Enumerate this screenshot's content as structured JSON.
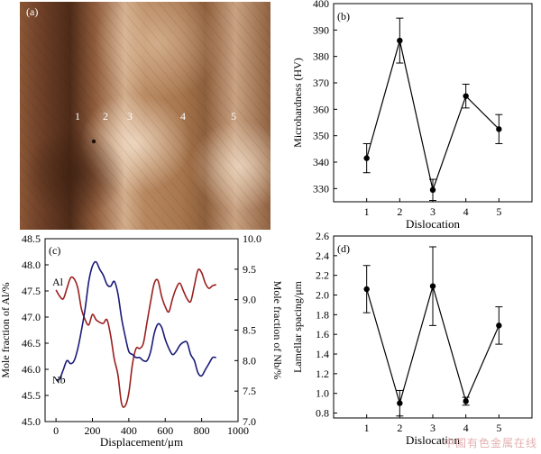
{
  "micrograph": {
    "panel_label": "(a)",
    "position_labels": [
      "1",
      "2",
      "3",
      "4",
      "5"
    ]
  },
  "watermark": "中国有色金属在线",
  "chart_data": [
    {
      "panel_label": "(b)",
      "type": "line",
      "error_bars": true,
      "categories": [
        "1",
        "2",
        "3",
        "4",
        "5"
      ],
      "series": [
        {
          "values": [
            341.5,
            386.0,
            329.5,
            365.0,
            352.5
          ],
          "errors": [
            5.5,
            8.5,
            4.0,
            4.5,
            5.5
          ]
        }
      ],
      "xlabel": "Dislocation",
      "ylabel": "Microhardness (HV)",
      "ylim": [
        325,
        400
      ],
      "yticks": [
        330,
        340,
        350,
        360,
        370,
        380,
        390,
        400
      ],
      "grid": false,
      "line_color": "#000000"
    },
    {
      "panel_label": "(c)",
      "type": "line",
      "x": [
        0,
        20,
        40,
        60,
        80,
        100,
        120,
        140,
        160,
        180,
        200,
        220,
        240,
        260,
        280,
        300,
        320,
        340,
        360,
        380,
        400,
        420,
        440,
        460,
        480,
        500,
        520,
        540,
        560,
        580,
        600,
        620,
        640,
        660,
        680,
        700,
        720,
        740,
        760,
        780,
        800,
        820,
        840,
        860,
        880
      ],
      "series": [
        {
          "name": "Al",
          "axis": "left",
          "color": "#9b1f1f",
          "values": [
            47.52,
            47.4,
            47.35,
            47.55,
            47.75,
            47.73,
            47.55,
            47.15,
            46.95,
            46.85,
            47.05,
            46.95,
            46.9,
            46.88,
            46.95,
            46.65,
            46.2,
            45.9,
            45.35,
            45.3,
            45.55,
            46.1,
            46.4,
            46.4,
            46.5,
            46.9,
            47.3,
            47.65,
            47.7,
            47.4,
            47.2,
            47.1,
            47.35,
            47.55,
            47.65,
            47.5,
            47.35,
            47.3,
            47.6,
            47.9,
            47.85,
            47.65,
            47.55,
            47.6,
            47.62
          ]
        },
        {
          "name": "Nb",
          "axis": "right",
          "color": "#1a1a7a",
          "values": [
            7.68,
            7.7,
            7.85,
            8.0,
            7.95,
            8.0,
            8.2,
            8.5,
            8.85,
            9.3,
            9.55,
            9.62,
            9.5,
            9.4,
            9.25,
            9.22,
            9.3,
            9.1,
            8.7,
            8.4,
            8.15,
            8.1,
            8.05,
            8.05,
            8.0,
            8.0,
            8.15,
            8.45,
            8.6,
            8.55,
            8.35,
            8.2,
            8.1,
            8.15,
            8.25,
            8.3,
            8.3,
            8.1,
            8.0,
            7.8,
            7.75,
            7.85,
            7.95,
            8.05,
            8.05
          ]
        }
      ],
      "series_labels": [
        "Al",
        "Nb"
      ],
      "xlabel": "Displacement/μm",
      "ylabel_left": "Mole fraction of Al/%",
      "ylabel_right": "Mole fraction of Nb/%",
      "xlim": [
        -60,
        1000
      ],
      "xticks": [
        0,
        200,
        400,
        600,
        800,
        1000
      ],
      "ylim_left": [
        45.0,
        48.5
      ],
      "yticks_left": [
        "45.0",
        "45.5",
        "46.0",
        "46.5",
        "47.0",
        "47.5",
        "48.0",
        "48.5"
      ],
      "ylim_right": [
        7.0,
        10.0
      ],
      "yticks_right": [
        "7.0",
        "7.5",
        "8.0",
        "8.5",
        "9.0",
        "9.5",
        "10.0"
      ],
      "grid": false
    },
    {
      "panel_label": "(d)",
      "type": "line",
      "error_bars": true,
      "categories": [
        "1",
        "2",
        "3",
        "4",
        "5"
      ],
      "series": [
        {
          "values": [
            2.06,
            0.9,
            2.09,
            0.92,
            1.69
          ],
          "errors": [
            0.24,
            0.13,
            0.4,
            0.04,
            0.19
          ]
        }
      ],
      "xlabel": "Dislocation",
      "ylabel": "Lamellar spacing/μm",
      "ylim": [
        0.75,
        2.6
      ],
      "yticks": [
        "0.8",
        "1.0",
        "1.2",
        "1.4",
        "1.6",
        "1.8",
        "2.0",
        "2.2",
        "2.4",
        "2.6"
      ],
      "grid": false,
      "line_color": "#000000"
    }
  ]
}
